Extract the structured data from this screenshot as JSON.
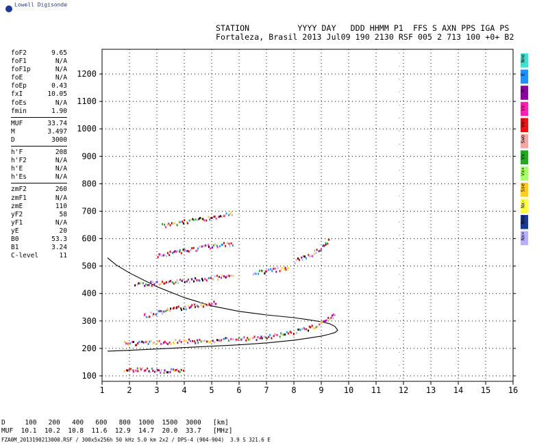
{
  "brand": "Lowell Digisonde",
  "header": {
    "line1": "STATION          YYYY DAY   DDD HHMM P1  FFS S AXN PPS IGA PS",
    "line2": "Fortaleza, Brasil 2013 Jul09 190 2130 RSF 005 2 713 100 +0+ B2"
  },
  "params": [
    [
      [
        "foF2",
        "9.65"
      ],
      [
        "foF1",
        "N/A"
      ],
      [
        "foF1p",
        "N/A"
      ],
      [
        "foE",
        "N/A"
      ],
      [
        "foEp",
        "0.43"
      ],
      [
        "fxI",
        "10.05"
      ],
      [
        "foEs",
        "N/A"
      ],
      [
        "fmin",
        "1.90"
      ]
    ],
    [
      [
        "MUF",
        "33.74"
      ],
      [
        "M",
        "3.497"
      ],
      [
        "D",
        "3000"
      ]
    ],
    [
      [
        "h'F",
        "208"
      ],
      [
        "h'F2",
        "N/A"
      ],
      [
        "h'E",
        "N/A"
      ],
      [
        "h'Es",
        "N/A"
      ]
    ],
    [
      [
        "zmF2",
        "260"
      ],
      [
        "zmF1",
        "N/A"
      ],
      [
        "zmE",
        "110"
      ],
      [
        "yF2",
        "58"
      ],
      [
        "yF1",
        "N/A"
      ],
      [
        "yE",
        "20"
      ],
      [
        "B0",
        "53.3"
      ],
      [
        "B1",
        "3.24"
      ],
      [
        "C-level",
        "11"
      ]
    ]
  ],
  "legend": [
    {
      "label": "Nne",
      "color": "#40e0d0"
    },
    {
      "label": "E",
      "color": "#1e90ff"
    },
    {
      "label": "W",
      "color": "#8b00a0"
    },
    {
      "label": "Vo-",
      "color": "#ff20b0"
    },
    {
      "label": "Vo+",
      "color": "#ee1111"
    },
    {
      "label": "Swo",
      "color": "#f4a6a6"
    },
    {
      "label": "Vx-",
      "color": "#22aa22"
    },
    {
      "label": "Vx+",
      "color": "#aaff66"
    },
    {
      "label": "Sse",
      "color": "#ffcc22"
    },
    {
      "label": "Nx-",
      "color": "#ffff44"
    },
    {
      "label": "Nnw",
      "color": "#1a3a9a"
    },
    {
      "label": "Nx+",
      "color": "#b8b0ff"
    }
  ],
  "chart_data": {
    "type": "scatter",
    "xlim": [
      1,
      16
    ],
    "ylim": [
      80,
      1290
    ],
    "x_ticks": [
      "1",
      "2",
      "3",
      "4",
      "5",
      "6",
      "7",
      "8",
      "9",
      "10",
      "11",
      "12",
      "13",
      "14",
      "15",
      "16"
    ],
    "y_ticks": [
      "100",
      "200",
      "300",
      "400",
      "500",
      "600",
      "700",
      "800",
      "900",
      "1000",
      "1100",
      "1200"
    ],
    "grid": true,
    "series": [
      {
        "name": "profile",
        "kind": "line",
        "x": [
          1.2,
          2,
          3,
          4,
          5,
          6,
          7,
          8,
          8.5,
          9,
          9.3,
          9.5,
          9.6,
          9.5,
          9.3,
          9,
          8.5,
          8,
          7,
          6,
          5,
          4,
          3,
          2,
          1.5,
          1.2
        ],
        "y": [
          190,
          193,
          198,
          203,
          208,
          213,
          220,
          230,
          237,
          245,
          252,
          258,
          266,
          280,
          290,
          297,
          305,
          312,
          322,
          335,
          355,
          385,
          425,
          475,
          505,
          530
        ]
      },
      {
        "name": "trace_F_o",
        "kind": "trace",
        "x": [
          1.8,
          2.5,
          3,
          4,
          5,
          6,
          7,
          7.5,
          8,
          8.5,
          8.8,
          9,
          9.2,
          9.4,
          9.5
        ],
        "y": [
          222,
          223,
          225,
          228,
          232,
          236,
          245,
          252,
          262,
          275,
          285,
          295,
          305,
          320,
          335
        ]
      },
      {
        "name": "trace_E",
        "kind": "trace",
        "x": [
          1.8,
          2.2,
          3,
          4
        ],
        "y": [
          125,
          125,
          122,
          120
        ]
      },
      {
        "name": "trace_2F",
        "kind": "trace",
        "x": [
          2.2,
          3,
          4,
          5,
          5.8
        ],
        "y": [
          435,
          440,
          450,
          460,
          465
        ]
      },
      {
        "name": "trace_2F_b",
        "kind": "trace",
        "x": [
          6.5,
          7,
          7.5,
          7.8
        ],
        "y": [
          480,
          485,
          492,
          498
        ]
      },
      {
        "name": "trace_2F_c",
        "kind": "trace",
        "x": [
          8,
          8.5,
          8.8,
          9,
          9.2,
          9.3
        ],
        "y": [
          520,
          540,
          555,
          570,
          590,
          610
        ]
      },
      {
        "name": "trace_multi",
        "kind": "trace",
        "x": [
          2.5,
          3.5,
          4.5,
          5.2
        ],
        "y": [
          320,
          345,
          360,
          370
        ]
      },
      {
        "name": "trace_3F",
        "kind": "trace",
        "x": [
          3,
          4,
          5,
          5.8
        ],
        "y": [
          540,
          560,
          575,
          585
        ]
      },
      {
        "name": "trace_4F",
        "kind": "trace",
        "x": [
          3.2,
          4,
          5,
          5.8
        ],
        "y": [
          650,
          665,
          680,
          695
        ]
      }
    ]
  },
  "bottom": {
    "line1": "D     100   200   400   600   800  1000  1500  3000   [km]",
    "line2": "MUF  10.1  10.2  10.8  11.6  12.9  14.7  20.0  33.7   [MHz]",
    "line3": "FZA0M_2013190213000.RSF / 300x5x256h 50 kHz 5.0 km 2x2 / DPS-4 (904-904)  3.9 S 321.6 E"
  }
}
